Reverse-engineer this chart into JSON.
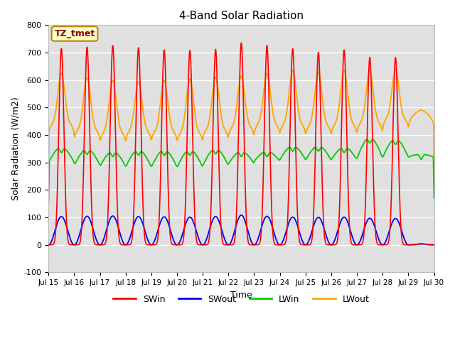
{
  "title": "4-Band Solar Radiation",
  "xlabel": "Time",
  "ylabel": "Solar Radiation (W/m2)",
  "ylim": [
    -100,
    800
  ],
  "xlim": [
    0,
    15
  ],
  "background_color": "#ffffff",
  "plot_bg_color": "#e0e0e0",
  "grid_color": "#ffffff",
  "label_box": "TZ_tmet",
  "x_tick_labels": [
    "Jul 15",
    "Jul 16",
    "Jul 17",
    "Jul 18",
    "Jul 19",
    "Jul 20",
    "Jul 21",
    "Jul 22",
    "Jul 23",
    "Jul 24",
    "Jul 25",
    "Jul 26",
    "Jul 27",
    "Jul 28",
    "Jul 29",
    "Jul 30"
  ],
  "colors": {
    "SWin": "#ff0000",
    "SWout": "#0000ff",
    "LWin": "#00cc00",
    "LWout": "#ffa500"
  },
  "SWin_peaks": [
    715,
    720,
    725,
    718,
    710,
    708,
    712,
    735,
    726,
    714,
    701,
    710,
    683,
    682,
    5
  ],
  "SWout_peaks": [
    103,
    104,
    105,
    103,
    102,
    101,
    103,
    108,
    104,
    101,
    100,
    101,
    97,
    96,
    3
  ],
  "LWin_bases": [
    300,
    290,
    285,
    283,
    283,
    282,
    288,
    295,
    305,
    310,
    308,
    310,
    315,
    318,
    320
  ],
  "LWin_peaks": [
    355,
    348,
    340,
    345,
    345,
    345,
    350,
    340,
    340,
    360,
    360,
    355,
    390,
    385,
    330
  ],
  "LWout_nights": [
    400,
    380,
    370,
    375,
    375,
    370,
    380,
    390,
    400,
    400,
    395,
    400,
    405,
    420,
    425
  ],
  "LWout_peaks": [
    565,
    550,
    540,
    535,
    540,
    545,
    550,
    555,
    565,
    575,
    570,
    575,
    575,
    580,
    430
  ]
}
